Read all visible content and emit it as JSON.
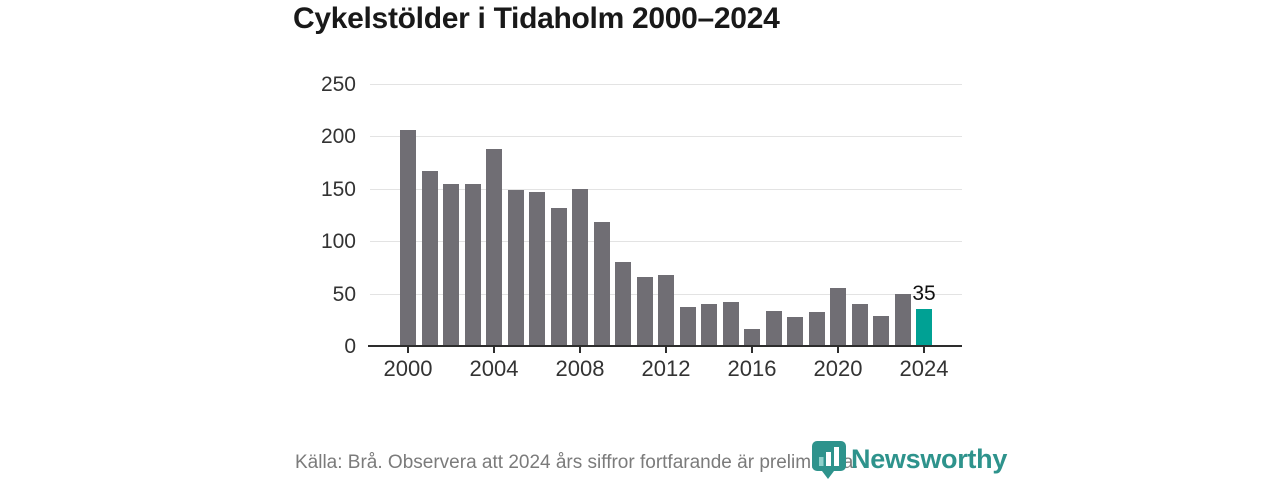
{
  "title": "Cykelstölder i Tidaholm 2000–2024",
  "chart_data": {
    "type": "bar",
    "title": "Cykelstölder i Tidaholm 2000–2024",
    "x": [
      2000,
      2001,
      2002,
      2003,
      2004,
      2005,
      2006,
      2007,
      2008,
      2009,
      2010,
      2011,
      2012,
      2013,
      2014,
      2015,
      2016,
      2017,
      2018,
      2019,
      2020,
      2021,
      2022,
      2023,
      2024
    ],
    "values": [
      206,
      167,
      155,
      155,
      188,
      149,
      147,
      132,
      150,
      118,
      80,
      66,
      68,
      37,
      40,
      42,
      16,
      33,
      28,
      32,
      55,
      40,
      29,
      50,
      35
    ],
    "xlabel": "",
    "ylabel": "",
    "ylim": [
      0,
      250
    ],
    "yticks": [
      0,
      50,
      100,
      150,
      200,
      250
    ],
    "xticks": [
      2000,
      2004,
      2008,
      2012,
      2016,
      2020,
      2024
    ],
    "grid": true,
    "legend_position": "none",
    "bar_color": "#706E74",
    "highlight_color": "#00A194",
    "highlight": {
      "year": 2024,
      "value": 35,
      "label": "35"
    }
  },
  "footer": {
    "source_note": "Källa: Brå. Observera att 2024 års siffror fortfarande är preliminära.",
    "logo_text": "Newsworthy"
  },
  "colors": {
    "background": "#ffffff",
    "title_text": "#191919",
    "axis_text": "#333333",
    "axis_line": "#2d2d2d",
    "gridline": "#e3e3e3",
    "source_text": "#7b7b7b",
    "logo_teal": "#2e938c"
  }
}
